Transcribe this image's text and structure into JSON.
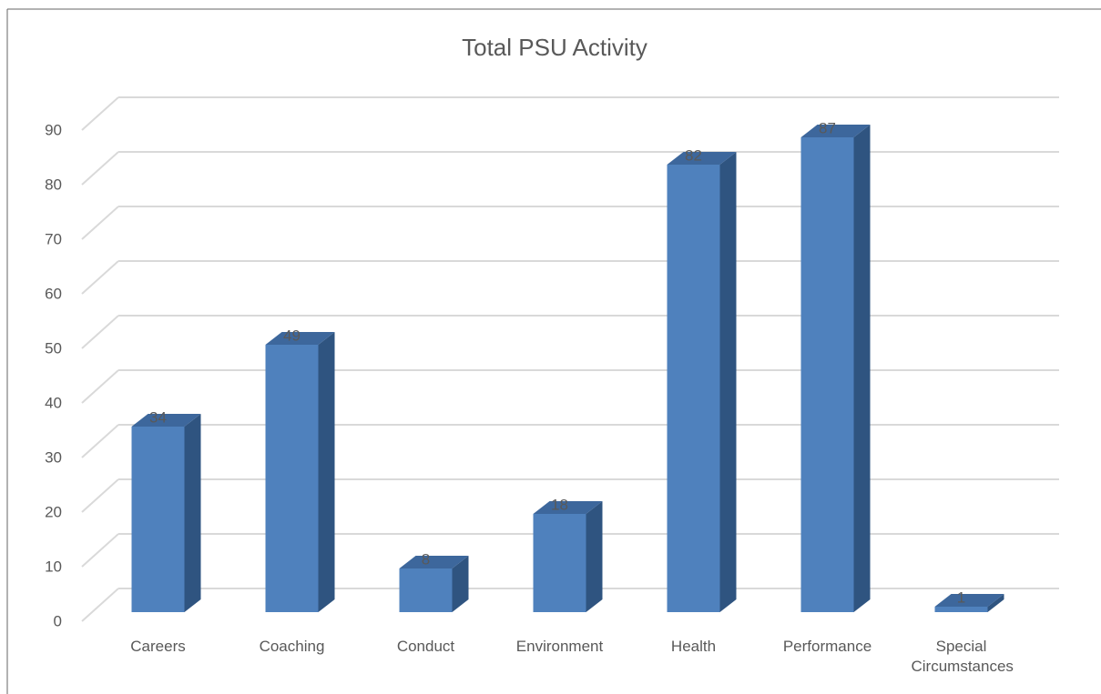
{
  "chart_data": {
    "type": "bar",
    "title": "Total PSU Activity",
    "categories": [
      "Careers",
      "Coaching",
      "Conduct",
      "Environment",
      "Health",
      "Performance",
      "Special Circumstances"
    ],
    "values": [
      34,
      49,
      8,
      18,
      82,
      87,
      1
    ],
    "color": "#4f81bd",
    "ylim": [
      0,
      90
    ],
    "yticks": [
      0,
      10,
      20,
      30,
      40,
      50,
      60,
      70,
      80,
      90
    ],
    "grid": true
  }
}
